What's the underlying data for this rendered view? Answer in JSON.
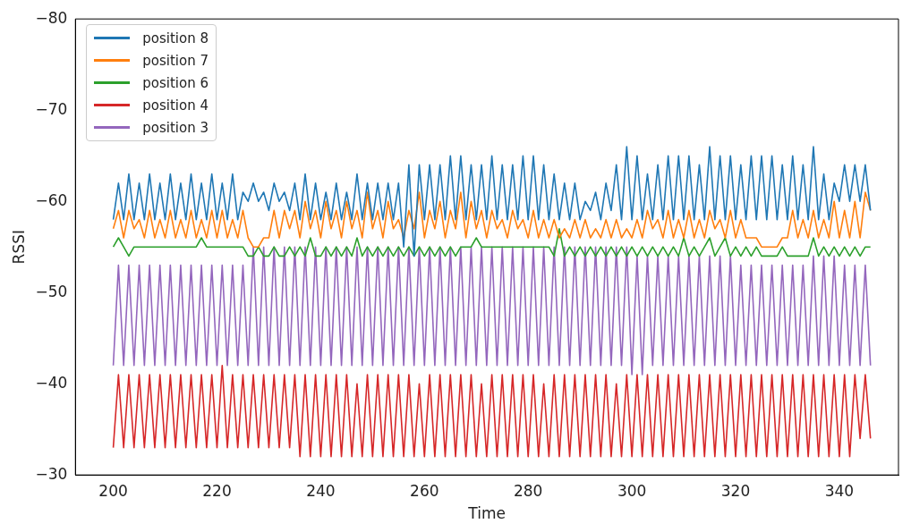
{
  "chart_data": {
    "type": "line",
    "xlabel": "Time",
    "ylabel": "RSSI",
    "x": [
      200,
      201,
      202,
      203,
      204,
      205,
      206,
      207,
      208,
      209,
      210,
      211,
      212,
      213,
      214,
      215,
      216,
      217,
      218,
      219,
      220,
      221,
      222,
      223,
      224,
      225,
      226,
      227,
      228,
      229,
      230,
      231,
      232,
      233,
      234,
      235,
      236,
      237,
      238,
      239,
      240,
      241,
      242,
      243,
      244,
      245,
      246,
      247,
      248,
      249,
      250,
      251,
      252,
      253,
      254,
      255,
      256,
      257,
      258,
      259,
      260,
      261,
      262,
      263,
      264,
      265,
      266,
      267,
      268,
      269,
      270,
      271,
      272,
      273,
      274,
      275,
      276,
      277,
      278,
      279,
      280,
      281,
      282,
      283,
      284,
      285,
      286,
      287,
      288,
      289,
      290,
      291,
      292,
      293,
      294,
      295,
      296,
      297,
      298,
      299,
      300,
      301,
      302,
      303,
      304,
      305,
      306,
      307,
      308,
      309,
      310,
      311,
      312,
      313,
      314,
      315,
      316,
      317,
      318,
      319,
      320,
      321,
      322,
      323,
      324,
      325,
      326,
      327,
      328,
      329,
      330,
      331,
      332,
      333,
      334,
      335,
      336,
      337,
      338,
      339,
      340,
      341,
      342,
      343,
      344,
      345,
      346
    ],
    "xlim": [
      192.7,
      351.4
    ],
    "xticks": [
      200,
      220,
      240,
      260,
      280,
      300,
      320,
      340
    ],
    "ylim": [
      -30,
      -80
    ],
    "yticks": [
      {
        "value": -30,
        "label": "−30"
      },
      {
        "value": -40,
        "label": "−40"
      },
      {
        "value": -50,
        "label": "−50"
      },
      {
        "value": -60,
        "label": "−60"
      },
      {
        "value": -70,
        "label": "−70"
      },
      {
        "value": -80,
        "label": "−80"
      }
    ],
    "legend": "top left",
    "marker": "none",
    "line_style": "solid",
    "series": [
      {
        "name": "position 8",
        "color": "#1f77b4",
        "values": [
          -58,
          -62,
          -58,
          -63,
          -58,
          -62,
          -58,
          -63,
          -58,
          -62,
          -58,
          -63,
          -58,
          -62,
          -58,
          -63,
          -58,
          -62,
          -58,
          -63,
          -58,
          -62,
          -58,
          -63,
          -58,
          -61,
          -60,
          -62,
          -60,
          -61,
          -59,
          -62,
          -60,
          -61,
          -59,
          -62,
          -58,
          -63,
          -58,
          -62,
          -58,
          -61,
          -58,
          -62,
          -58,
          -61,
          -58,
          -63,
          -58,
          -62,
          -58,
          -62,
          -58,
          -62,
          -58,
          -62,
          -55,
          -64,
          -54,
          -64,
          -58,
          -64,
          -58,
          -64,
          -58,
          -65,
          -58,
          -65,
          -58,
          -64,
          -58,
          -64,
          -58,
          -65,
          -58,
          -64,
          -58,
          -64,
          -58,
          -65,
          -58,
          -65,
          -58,
          -64,
          -58,
          -63,
          -58,
          -62,
          -58,
          -62,
          -58,
          -60,
          -59,
          -61,
          -58,
          -62,
          -59,
          -64,
          -58,
          -66,
          -58,
          -65,
          -58,
          -63,
          -58,
          -64,
          -58,
          -65,
          -58,
          -65,
          -58,
          -65,
          -58,
          -64,
          -58,
          -66,
          -58,
          -65,
          -58,
          -65,
          -58,
          -64,
          -58,
          -65,
          -58,
          -65,
          -58,
          -65,
          -58,
          -64,
          -58,
          -65,
          -58,
          -64,
          -58,
          -66,
          -58,
          -63,
          -58,
          -62,
          -60,
          -64,
          -60,
          -64,
          -60,
          -64,
          -59
        ]
      },
      {
        "name": "position 7",
        "color": "#ff7f0e",
        "values": [
          -57,
          -59,
          -56,
          -59,
          -57,
          -58,
          -56,
          -59,
          -56,
          -58,
          -56,
          -59,
          -56,
          -58,
          -56,
          -59,
          -56,
          -58,
          -56,
          -59,
          -56,
          -59,
          -56,
          -58,
          -56,
          -59,
          -56,
          -55,
          -55,
          -56,
          -56,
          -59,
          -56,
          -59,
          -57,
          -59,
          -56,
          -60,
          -57,
          -59,
          -56,
          -60,
          -57,
          -59,
          -56,
          -60,
          -57,
          -59,
          -56,
          -61,
          -57,
          -59,
          -56,
          -60,
          -57,
          -58,
          -56,
          -59,
          -57,
          -61,
          -56,
          -59,
          -57,
          -60,
          -56,
          -59,
          -57,
          -61,
          -56,
          -60,
          -57,
          -59,
          -56,
          -59,
          -57,
          -58,
          -56,
          -59,
          -57,
          -58,
          -56,
          -59,
          -56,
          -58,
          -56,
          -58,
          -56,
          -57,
          -56,
          -58,
          -56,
          -58,
          -56,
          -57,
          -56,
          -58,
          -56,
          -58,
          -56,
          -57,
          -56,
          -58,
          -56,
          -59,
          -57,
          -58,
          -56,
          -59,
          -56,
          -58,
          -56,
          -59,
          -56,
          -58,
          -56,
          -59,
          -57,
          -58,
          -56,
          -59,
          -56,
          -58,
          -56,
          -56,
          -56,
          -55,
          -55,
          -55,
          -55,
          -56,
          -56,
          -59,
          -56,
          -58,
          -56,
          -59,
          -56,
          -58,
          -56,
          -60,
          -56,
          -59,
          -56,
          -60,
          -56,
          -61,
          -59
        ]
      },
      {
        "name": "position 6",
        "color": "#2ca02c",
        "values": [
          -55,
          -56,
          -55,
          -54,
          -55,
          -55,
          -55,
          -55,
          -55,
          -55,
          -55,
          -55,
          -55,
          -55,
          -55,
          -55,
          -55,
          -56,
          -55,
          -55,
          -55,
          -55,
          -55,
          -55,
          -55,
          -55,
          -54,
          -54,
          -55,
          -54,
          -54,
          -55,
          -54,
          -54,
          -55,
          -54,
          -55,
          -54,
          -56,
          -54,
          -54,
          -55,
          -54,
          -55,
          -54,
          -55,
          -54,
          -56,
          -54,
          -55,
          -54,
          -55,
          -54,
          -55,
          -54,
          -55,
          -54,
          -55,
          -54,
          -55,
          -54,
          -55,
          -54,
          -55,
          -54,
          -55,
          -54,
          -55,
          -55,
          -55,
          -56,
          -55,
          -55,
          -55,
          -55,
          -55,
          -55,
          -55,
          -55,
          -55,
          -55,
          -55,
          -55,
          -55,
          -55,
          -54,
          -57,
          -54,
          -55,
          -54,
          -55,
          -54,
          -55,
          -54,
          -55,
          -54,
          -55,
          -54,
          -55,
          -54,
          -55,
          -54,
          -55,
          -54,
          -55,
          -54,
          -55,
          -54,
          -55,
          -54,
          -56,
          -54,
          -55,
          -54,
          -55,
          -56,
          -54,
          -55,
          -56,
          -54,
          -55,
          -54,
          -55,
          -54,
          -55,
          -54,
          -54,
          -54,
          -54,
          -55,
          -54,
          -54,
          -54,
          -54,
          -54,
          -56,
          -54,
          -55,
          -54,
          -55,
          -54,
          -55,
          -54,
          -55,
          -54,
          -55,
          -55
        ]
      },
      {
        "name": "position 4",
        "color": "#d62728",
        "values": [
          -33,
          -41,
          -33,
          -41,
          -33,
          -41,
          -33,
          -41,
          -33,
          -41,
          -33,
          -41,
          -33,
          -41,
          -33,
          -41,
          -33,
          -41,
          -33,
          -41,
          -33,
          -42,
          -33,
          -41,
          -33,
          -41,
          -33,
          -41,
          -33,
          -41,
          -33,
          -41,
          -33,
          -41,
          -33,
          -41,
          -32,
          -41,
          -32,
          -41,
          -32,
          -41,
          -32,
          -41,
          -32,
          -41,
          -32,
          -40,
          -32,
          -41,
          -32,
          -41,
          -32,
          -41,
          -32,
          -41,
          -32,
          -41,
          -32,
          -40,
          -32,
          -41,
          -32,
          -41,
          -32,
          -41,
          -32,
          -41,
          -32,
          -41,
          -32,
          -40,
          -32,
          -41,
          -32,
          -41,
          -32,
          -41,
          -32,
          -41,
          -32,
          -41,
          -32,
          -40,
          -32,
          -41,
          -32,
          -41,
          -32,
          -41,
          -32,
          -41,
          -32,
          -41,
          -32,
          -41,
          -32,
          -40,
          -32,
          -41,
          -32,
          -41,
          -32,
          -41,
          -32,
          -41,
          -32,
          -41,
          -32,
          -41,
          -32,
          -41,
          -32,
          -41,
          -32,
          -41,
          -32,
          -41,
          -32,
          -41,
          -32,
          -41,
          -32,
          -41,
          -32,
          -41,
          -32,
          -41,
          -32,
          -41,
          -32,
          -41,
          -32,
          -41,
          -32,
          -41,
          -32,
          -41,
          -32,
          -41,
          -32,
          -41,
          -32,
          -41,
          -34,
          -41,
          -34
        ]
      },
      {
        "name": "position 3",
        "color": "#9467bd",
        "values": [
          -42,
          -53,
          -42,
          -53,
          -42,
          -53,
          -42,
          -53,
          -42,
          -53,
          -42,
          -53,
          -42,
          -53,
          -42,
          -53,
          -42,
          -53,
          -42,
          -53,
          -42,
          -53,
          -42,
          -53,
          -42,
          -53,
          -42,
          -55,
          -42,
          -55,
          -42,
          -55,
          -42,
          -55,
          -42,
          -55,
          -42,
          -55,
          -42,
          -55,
          -42,
          -55,
          -42,
          -55,
          -42,
          -55,
          -42,
          -55,
          -42,
          -55,
          -42,
          -55,
          -42,
          -55,
          -42,
          -55,
          -42,
          -55,
          -42,
          -55,
          -42,
          -55,
          -42,
          -55,
          -42,
          -55,
          -42,
          -55,
          -42,
          -55,
          -42,
          -55,
          -42,
          -55,
          -42,
          -55,
          -42,
          -55,
          -42,
          -55,
          -42,
          -55,
          -42,
          -55,
          -42,
          -55,
          -42,
          -55,
          -42,
          -55,
          -42,
          -55,
          -42,
          -55,
          -42,
          -55,
          -42,
          -55,
          -42,
          -55,
          -41,
          -54,
          -41,
          -54,
          -42,
          -54,
          -42,
          -54,
          -42,
          -54,
          -42,
          -54,
          -42,
          -54,
          -42,
          -54,
          -42,
          -54,
          -42,
          -54,
          -42,
          -53,
          -42,
          -53,
          -42,
          -53,
          -42,
          -53,
          -42,
          -53,
          -42,
          -53,
          -42,
          -53,
          -42,
          -54,
          -42,
          -54,
          -42,
          -54,
          -42,
          -53,
          -42,
          -53,
          -42,
          -53,
          -42
        ]
      }
    ]
  }
}
